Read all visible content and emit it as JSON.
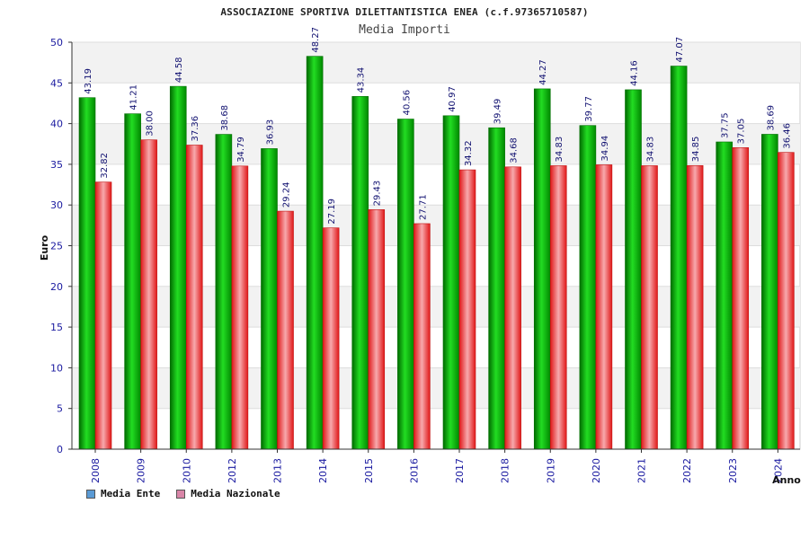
{
  "header": {
    "title": "ASSOCIAZIONE SPORTIVA DILETTANTISTICA ENEA (c.f.97365710587)",
    "subtitle": "Media Importi"
  },
  "chart_data": {
    "type": "bar",
    "title": "Media Importi",
    "xlabel": "Anno",
    "ylabel": "Euro",
    "ylim": [
      0,
      50
    ],
    "yticks": [
      0,
      5,
      10,
      15,
      20,
      25,
      30,
      35,
      40,
      45,
      50
    ],
    "grid": true,
    "legend_position": "bottom-left",
    "categories": [
      "2008",
      "2009",
      "2010",
      "2012",
      "2013",
      "2014",
      "2015",
      "2016",
      "2017",
      "2018",
      "2019",
      "2020",
      "2021",
      "2022",
      "2023",
      "2024"
    ],
    "series": [
      {
        "name": "Media Ente",
        "color": "#00b400",
        "legend_color": "#5b9bd5",
        "values": [
          43.19,
          41.21,
          44.58,
          38.68,
          36.93,
          48.27,
          43.34,
          40.56,
          40.97,
          39.49,
          44.27,
          39.77,
          44.16,
          47.07,
          37.75,
          38.69
        ]
      },
      {
        "name": "Media Nazionale",
        "color": "#e8202a",
        "legend_color": "#d986a8",
        "values": [
          32.82,
          38.0,
          37.36,
          34.79,
          29.24,
          27.19,
          29.43,
          27.71,
          34.32,
          34.68,
          34.83,
          34.94,
          34.83,
          34.85,
          37.05,
          36.46
        ]
      }
    ],
    "value_labels": [
      [
        "43.19",
        "41.21",
        "44.58",
        "38.68",
        "36.93",
        "48.27",
        "43.34",
        "40.56",
        "40.97",
        "39.49",
        "44.27",
        "39.77",
        "44.16",
        "47.07",
        "37.75",
        "38.69"
      ],
      [
        "32.82",
        "38.00",
        "37.36",
        "34.79",
        "29.24",
        "27.19",
        "29.43",
        "27.71",
        "34.32",
        "34.68",
        "34.83",
        "34.94",
        "34.83",
        "34.85",
        "37.05",
        "36.46"
      ]
    ]
  }
}
